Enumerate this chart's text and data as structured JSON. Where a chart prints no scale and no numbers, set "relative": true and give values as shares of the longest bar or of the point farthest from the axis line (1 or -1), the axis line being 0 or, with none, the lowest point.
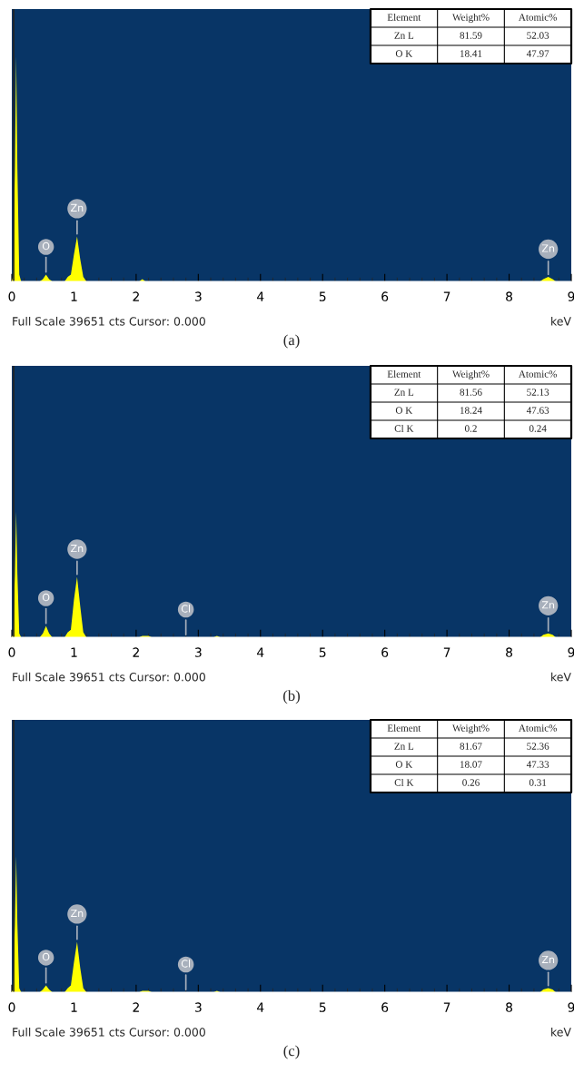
{
  "chart_data": [
    {
      "type": "area",
      "title": "(a)",
      "xlabel": "keV",
      "relative": true,
      "xlim": [
        0,
        9
      ],
      "xticks": [
        0,
        1,
        2,
        3,
        4,
        5,
        6,
        7,
        8,
        9
      ],
      "grid": false,
      "x": [
        0,
        0.02,
        0.05,
        0.07,
        0.09,
        0.12,
        0.15,
        0.45,
        0.5,
        0.55,
        0.6,
        0.65,
        0.85,
        0.9,
        0.95,
        1.0,
        1.05,
        1.1,
        1.15,
        1.2,
        2.05,
        2.1,
        2.15,
        8.5,
        8.55,
        8.63,
        8.7,
        8.75,
        9
      ],
      "series": [
        {
          "color": "#ffff00",
          "values": [
            0,
            0.02,
            0.5,
            1,
            0.5,
            0.03,
            0,
            0,
            0.01,
            0.03,
            0.01,
            0,
            0,
            0.02,
            0.03,
            0.12,
            0.2,
            0.1,
            0.02,
            0,
            0,
            0.01,
            0,
            0,
            0.01,
            0.02,
            0.01,
            0,
            0
          ]
        }
      ],
      "ref_lines": [
        {
          "axis": "x",
          "value": 0.03,
          "color": "#222222"
        }
      ],
      "annotations": [
        "Full Scale 39651 cts Cursor: 0.000",
        "Element",
        "Weight%",
        "Atomic%",
        "Zn L",
        "81.59",
        "52.03",
        "O K",
        "18.41",
        "47.97",
        {
          "text": "O",
          "x": 0.55,
          "y": 0.03
        },
        {
          "text": "Zn",
          "x": 1.05,
          "y": 0.2
        },
        {
          "text": "Zn",
          "x": 8.63,
          "y": 0.02
        }
      ]
    },
    {
      "type": "area",
      "title": "(b)",
      "xlabel": "keV",
      "relative": true,
      "xlim": [
        0,
        9
      ],
      "xticks": [
        0,
        1,
        2,
        3,
        4,
        5,
        6,
        7,
        8,
        9
      ],
      "grid": false,
      "x": [
        0,
        0.02,
        0.05,
        0.07,
        0.09,
        0.12,
        0.15,
        0.45,
        0.5,
        0.55,
        0.6,
        0.65,
        0.85,
        0.9,
        0.95,
        1.0,
        1.05,
        1.1,
        1.15,
        1.2,
        2.05,
        2.1,
        2.2,
        2.25,
        3.25,
        3.3,
        3.35,
        8.5,
        8.55,
        8.63,
        8.7,
        8.75,
        9
      ],
      "series": [
        {
          "color": "#ffff00",
          "values": [
            0,
            0.02,
            0.5,
            1,
            0.5,
            0.03,
            0,
            0,
            0.03,
            0.09,
            0.03,
            0,
            0,
            0.04,
            0.06,
            0.3,
            0.48,
            0.25,
            0.04,
            0,
            0,
            0.01,
            0.01,
            0,
            0,
            0.01,
            0,
            0,
            0.02,
            0.03,
            0.02,
            0,
            0
          ]
        }
      ],
      "ref_lines": [
        {
          "axis": "x",
          "value": 0.03,
          "color": "#222222"
        }
      ],
      "annotations": [
        "Full Scale 39651 cts Cursor: 0.000",
        "Element",
        "Weight%",
        "Atomic%",
        "Zn L",
        "81.56",
        "52.13",
        "O K",
        "18.24",
        "47.63",
        "Cl K",
        "0.2",
        "0.24",
        {
          "text": "O",
          "x": 0.55,
          "y": 0.09
        },
        {
          "text": "Zn",
          "x": 1.05,
          "y": 0.48
        },
        {
          "text": "Cl",
          "x": 2.8,
          "y": 0
        },
        {
          "text": "Zn",
          "x": 8.63,
          "y": 0.03
        }
      ]
    },
    {
      "type": "area",
      "title": "(c)",
      "xlabel": "keV",
      "relative": true,
      "xlim": [
        0,
        9
      ],
      "xticks": [
        0,
        1,
        2,
        3,
        4,
        5,
        6,
        7,
        8,
        9
      ],
      "grid": false,
      "x": [
        0,
        0.02,
        0.05,
        0.07,
        0.09,
        0.12,
        0.15,
        0.45,
        0.5,
        0.55,
        0.6,
        0.65,
        0.85,
        0.9,
        0.95,
        1.0,
        1.05,
        1.1,
        1.15,
        1.2,
        2.05,
        2.1,
        2.2,
        2.25,
        3.25,
        3.3,
        3.35,
        8.5,
        8.55,
        8.63,
        8.7,
        8.75,
        9
      ],
      "series": [
        {
          "color": "#ffff00",
          "values": [
            0,
            0.02,
            0.5,
            1,
            0.5,
            0.03,
            0,
            0,
            0.02,
            0.05,
            0.02,
            0,
            0,
            0.03,
            0.05,
            0.22,
            0.37,
            0.18,
            0.03,
            0,
            0,
            0.01,
            0.01,
            0,
            0,
            0.01,
            0,
            0,
            0.02,
            0.03,
            0.02,
            0,
            0
          ]
        }
      ],
      "ref_lines": [
        {
          "axis": "x",
          "value": 0.03,
          "color": "#222222"
        }
      ],
      "annotations": [
        "Full Scale 39651 cts Cursor: 0.000",
        "Element",
        "Weight%",
        "Atomic%",
        "Zn L",
        "81.67",
        "52.36",
        "O K",
        "18.07",
        "47.33",
        "Cl K",
        "0.26",
        "0.31",
        {
          "text": "O",
          "x": 0.55,
          "y": 0.05
        },
        {
          "text": "Zn",
          "x": 1.05,
          "y": 0.37
        },
        {
          "text": "Cl",
          "x": 2.8,
          "y": 0
        },
        {
          "text": "Zn",
          "x": 8.63,
          "y": 0.03
        }
      ]
    }
  ]
}
